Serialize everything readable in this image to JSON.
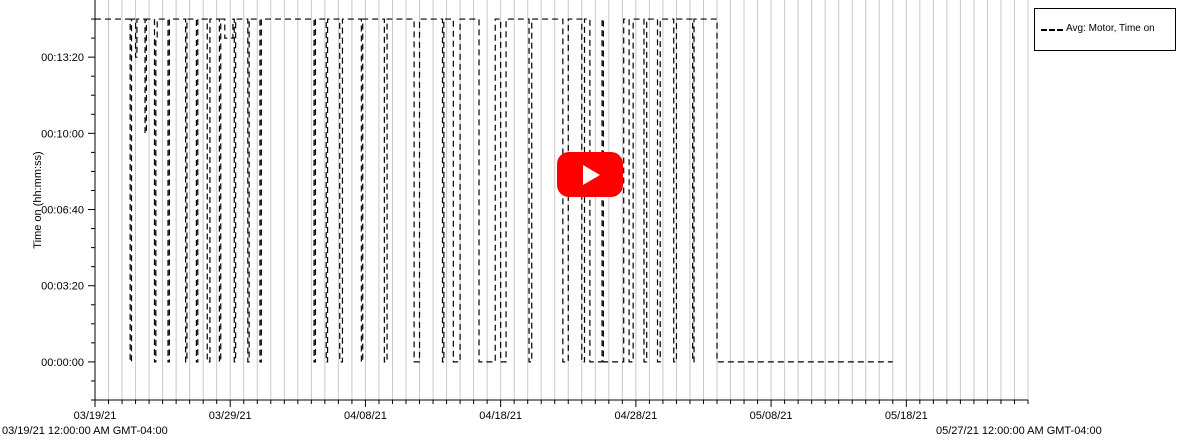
{
  "chart_data": {
    "type": "line",
    "title": "",
    "xlabel": "",
    "ylabel": "Time on (hh:mm:ss)",
    "x_range": [
      "03/19/21",
      "05/27/21"
    ],
    "y_range_seconds": [
      0,
      900
    ],
    "x_tick_labels": [
      "03/19/21",
      "03/29/21",
      "04/08/21",
      "04/18/21",
      "04/28/21",
      "05/08/21",
      "05/18/21"
    ],
    "y_tick_labels": [
      {
        "label": "00:00:00",
        "seconds": 0
      },
      {
        "label": "00:03:20",
        "seconds": 200
      },
      {
        "label": "00:06:40",
        "seconds": 400
      },
      {
        "label": "00:10:00",
        "seconds": 600
      },
      {
        "label": "00:13:20",
        "seconds": 800
      }
    ],
    "range_start_label": "03/19/21 12:00:00 AM GMT-04:00",
    "range_end_label": "05/27/21 12:00:00 AM GMT-04:00",
    "grid": {
      "vertical": true,
      "horizontal": false
    },
    "legend": {
      "position": "top-right",
      "entries": [
        "Avg: Motor, Time on"
      ]
    },
    "series": [
      {
        "name": "Avg: Motor, Time on",
        "style": "dashed",
        "color": "#000000",
        "x_day": [
          0,
          2.5,
          2.6,
          2.7,
          2.9,
          3.0,
          3.1,
          3.6,
          3.7,
          3.8,
          4.3,
          4.4,
          4.5,
          4.6,
          5.3,
          5.4,
          5.5,
          5.6,
          6.6,
          6.7,
          6.8,
          7.4,
          7.5,
          7.6,
          7.8,
          8.2,
          8.3,
          8.5,
          8.6,
          9.1,
          9.2,
          9.3,
          9.5,
          9.6,
          10.2,
          10.3,
          10.4,
          11.2,
          11.3,
          11.4,
          12.1,
          12.2,
          12.3,
          12.4,
          16.1,
          16.2,
          16.3,
          16.5,
          17.0,
          17.1,
          17.2,
          17.4,
          18.0,
          18.1,
          18.3,
          18.5,
          19.6,
          19.7,
          19.8,
          20.1,
          20.3,
          21.3,
          21.4,
          21.6,
          21.9,
          22.2,
          23.5,
          23.6,
          24.0,
          24.2,
          24.5,
          25.6,
          25.7,
          25.8,
          26.4,
          26.5,
          27.0,
          27.2,
          27.5,
          28.2,
          28.4,
          29.6,
          29.7,
          30.0,
          30.4,
          30.7,
          32.0,
          32.1,
          32.3,
          32.6,
          34.5,
          34.6,
          35.0,
          35.2,
          35.5,
          35.7,
          36.0,
          36.2,
          36.4,
          36.6,
          37.5,
          37.6,
          39.1,
          39.2,
          39.5,
          39.8,
          40.4,
          40.6,
          40.8,
          41.2,
          41.6,
          41.8,
          42.2,
          42.5,
          42.8,
          43.0,
          43.5,
          44.2,
          44.3,
          46.0,
          46.5,
          47.0,
          48.0,
          50.0,
          55.0,
          59.0
        ],
        "y_seconds": [
          900,
          900,
          0,
          900,
          900,
          800,
          900,
          900,
          600,
          900,
          900,
          0,
          850,
          900,
          900,
          0,
          900,
          900,
          900,
          0,
          900,
          900,
          0,
          900,
          900,
          900,
          0,
          900,
          900,
          900,
          0,
          900,
          900,
          850,
          900,
          0,
          900,
          900,
          0,
          900,
          900,
          0,
          900,
          900,
          900,
          0,
          900,
          900,
          900,
          0,
          900,
          900,
          900,
          0,
          900,
          900,
          900,
          0,
          900,
          900,
          900,
          900,
          0,
          900,
          900,
          900,
          900,
          0,
          900,
          900,
          900,
          900,
          0,
          900,
          900,
          0,
          900,
          900,
          900,
          900,
          0,
          900,
          900,
          0,
          900,
          900,
          900,
          0,
          900,
          900,
          900,
          0,
          900,
          900,
          900,
          900,
          0,
          900,
          900,
          0,
          900,
          0,
          900,
          900,
          0,
          900,
          900,
          0,
          900,
          900,
          0,
          900,
          900,
          900,
          0,
          900,
          900,
          0,
          900,
          0,
          0,
          0,
          0,
          0,
          0,
          0
        ]
      }
    ]
  },
  "video": {
    "icon": "play-icon",
    "color": "#ff0000"
  }
}
